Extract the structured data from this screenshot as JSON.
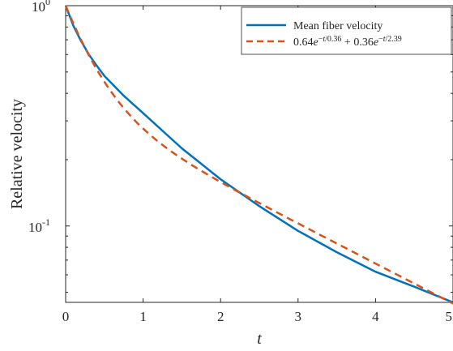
{
  "chart_data": {
    "type": "line",
    "title": "",
    "xlabel": "t",
    "ylabel": "Relative velocity",
    "xlim": [
      0,
      5
    ],
    "ylim": [
      0.045,
      1
    ],
    "yscale": "log",
    "grid": false,
    "legend_position": "top-right",
    "x_ticks": [
      0,
      1,
      2,
      3,
      4,
      5
    ],
    "x_tick_labels": [
      "0",
      "1",
      "2",
      "3",
      "4",
      "5"
    ],
    "y_ticks": [
      0.1,
      1
    ],
    "y_tick_labels": [
      {
        "base": "10",
        "exp": "-1"
      },
      {
        "base": "10",
        "exp": "0"
      }
    ],
    "series": [
      {
        "name": "Mean fiber velocity",
        "color": "#0072BD",
        "style": "solid",
        "x": [
          0,
          0.1,
          0.2,
          0.3,
          0.4,
          0.5,
          0.75,
          1.0,
          1.5,
          2.0,
          2.5,
          3.0,
          3.5,
          4.0,
          4.5,
          5.0
        ],
        "y": [
          1.0,
          0.81,
          0.69,
          0.6,
          0.535,
          0.48,
          0.39,
          0.325,
          0.225,
          0.163,
          0.123,
          0.095,
          0.076,
          0.062,
          0.053,
          0.045
        ]
      },
      {
        "name_parts": {
          "coef1": "0.64",
          "tau1": "0.36",
          "coef2": "0.36",
          "tau2": "2.39"
        },
        "color": "#D95319",
        "style": "dashed",
        "model": {
          "a1": 0.64,
          "tau1": 0.36,
          "a2": 0.36,
          "tau2": 2.39
        }
      }
    ]
  }
}
